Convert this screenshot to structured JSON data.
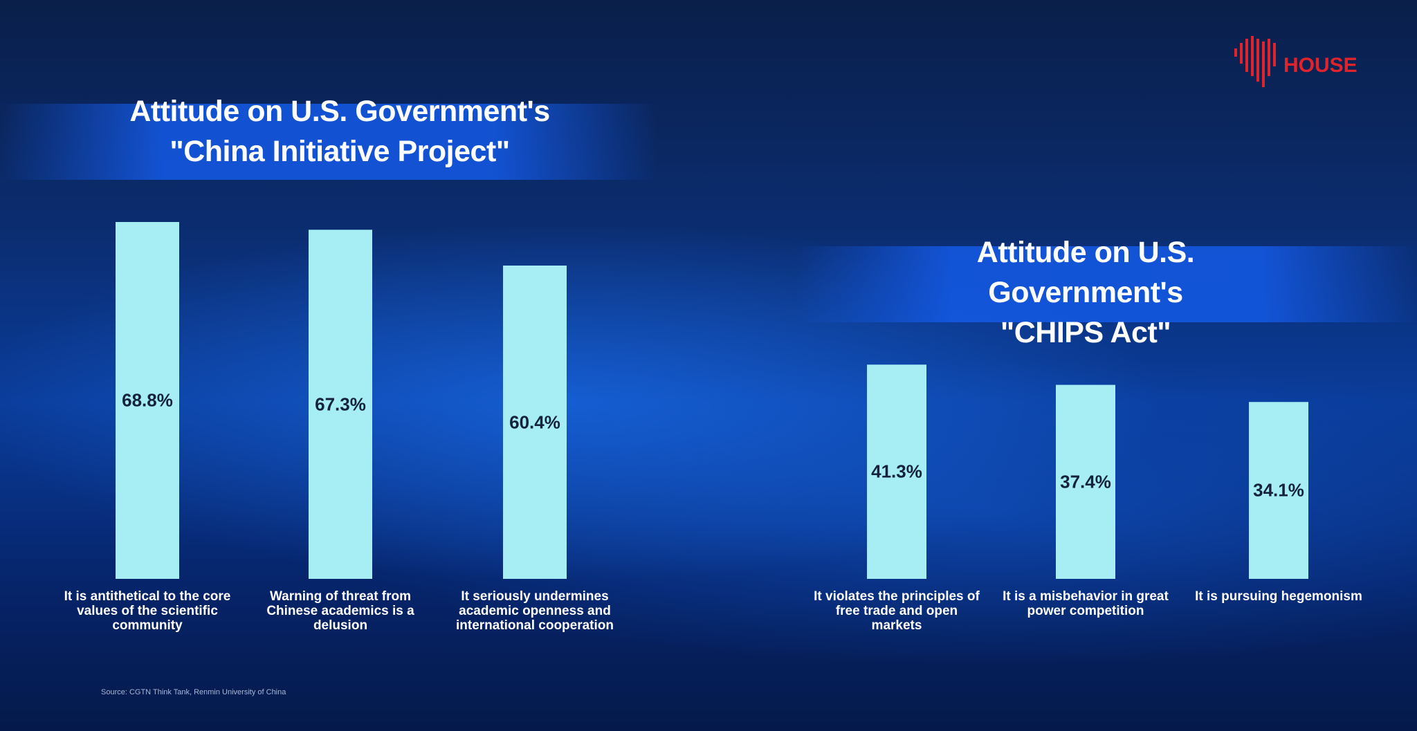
{
  "logo": "HOUSE",
  "source": "Source: CGTN Think Tank, Renmin University of China",
  "chart_data": [
    {
      "type": "bar",
      "title": "Attitude on U.S. Government's\n\"China Initiative Project\"",
      "categories": [
        "It is antithetical to the core values of the scientific community",
        "Warning of threat from Chinese academics is a delusion",
        "It seriously undermines academic openness and international cooperation"
      ],
      "values": [
        68.8,
        67.3,
        60.4
      ],
      "value_labels": [
        "68.8%",
        "67.3%",
        "60.4%"
      ],
      "color": "#a6eef4"
    },
    {
      "type": "bar",
      "title": "Attitude on U.S. Government's\n\"CHIPS Act\"",
      "categories": [
        "It violates the principles of free trade and open markets",
        "It is a misbehavior in great power competition",
        "It is pursuing hegemonism"
      ],
      "values": [
        41.3,
        37.4,
        34.1
      ],
      "value_labels": [
        "41.3%",
        "37.4%",
        "34.1%"
      ],
      "color": "#a6eef4"
    }
  ]
}
